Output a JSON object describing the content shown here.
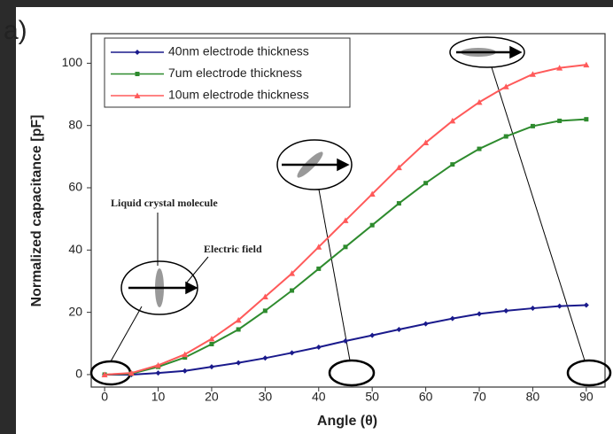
{
  "chart_data": {
    "type": "line",
    "panel_label": "a)",
    "xlabel": "Angle (θ)",
    "ylabel": "Normalized capacitance [pF]",
    "x": [
      0,
      5,
      10,
      15,
      20,
      25,
      30,
      35,
      40,
      45,
      50,
      55,
      60,
      65,
      70,
      75,
      80,
      85,
      90
    ],
    "series": [
      {
        "name": "40nm electrode thickness",
        "color": "#1a1a8c",
        "marker": "diamond",
        "values": [
          0,
          0,
          0.5,
          1.2,
          2.5,
          3.8,
          5.3,
          7,
          8.8,
          10.8,
          12.6,
          14.5,
          16.3,
          18,
          19.5,
          20.5,
          21.3,
          22,
          22.3
        ]
      },
      {
        "name": "7um electrode thickness",
        "color": "#2e8b2e",
        "marker": "square",
        "values": [
          0,
          0.3,
          2.5,
          5.5,
          9.8,
          14.5,
          20.5,
          27,
          34,
          41,
          48,
          55,
          61.5,
          67.5,
          72.5,
          76.5,
          79.8,
          81.5,
          82
        ]
      },
      {
        "name": "10um electrode thickness",
        "color": "#ff5a5a",
        "marker": "triangle",
        "values": [
          0,
          0.5,
          3,
          6.5,
          11.5,
          17.5,
          25,
          32.5,
          41,
          49.5,
          58,
          66.5,
          74.5,
          81.5,
          87.5,
          92.5,
          96.5,
          98.5,
          99.5
        ]
      }
    ],
    "xlim": [
      -2.5,
      93.5
    ],
    "xticks": [
      0,
      10,
      20,
      30,
      40,
      50,
      60,
      70,
      80,
      90
    ],
    "ylim": [
      -4,
      109.5
    ],
    "yticks": [
      0,
      20,
      40,
      60,
      80,
      100
    ],
    "annotations": [
      "Liquid crystal molecule",
      "Electric field"
    ],
    "legend": "upper-left"
  }
}
